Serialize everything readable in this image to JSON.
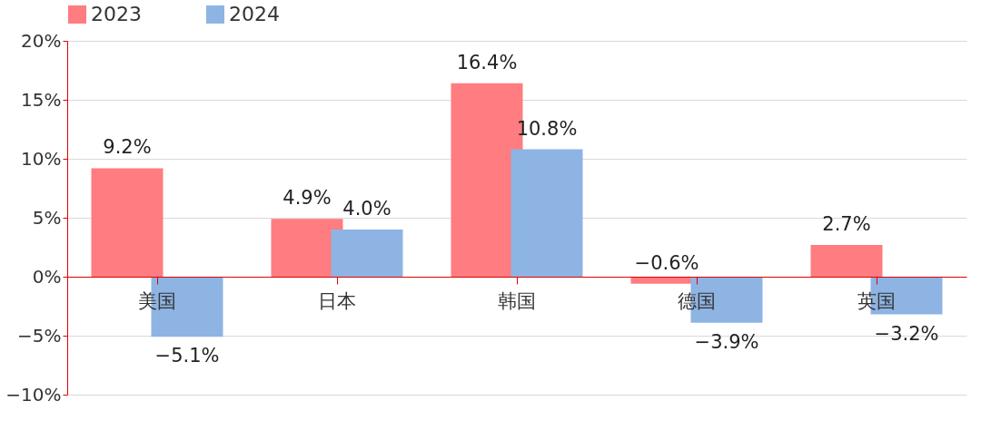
{
  "chart_data": {
    "type": "bar",
    "categories": [
      "美国",
      "日本",
      "韩国",
      "德国",
      "英国"
    ],
    "series": [
      {
        "name": "2023",
        "color": "#ff7c80",
        "values": [
          9.2,
          4.9,
          16.4,
          -0.6,
          2.7
        ],
        "value_labels": [
          "9.2%",
          "4.9%",
          "16.4%",
          "−0.6%",
          "2.7%"
        ]
      },
      {
        "name": "2024",
        "color": "#8eb4e3",
        "values": [
          -5.1,
          4.0,
          10.8,
          -3.9,
          -3.2
        ],
        "value_labels": [
          "−5.1%",
          "4.0%",
          "10.8%",
          "−3.9%",
          "−3.2%"
        ]
      }
    ],
    "ylim": [
      -10,
      20
    ],
    "yticks": [
      {
        "value": -10,
        "label": "−10%"
      },
      {
        "value": -5,
        "label": "−5%"
      },
      {
        "value": 0,
        "label": "0%"
      },
      {
        "value": 5,
        "label": "5%"
      },
      {
        "value": 10,
        "label": "10%"
      },
      {
        "value": 15,
        "label": "15%"
      },
      {
        "value": 20,
        "label": "20%"
      }
    ],
    "grid": "y",
    "legend": "top"
  }
}
